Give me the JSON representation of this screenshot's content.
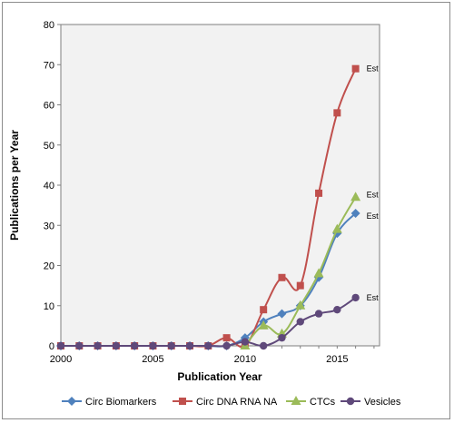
{
  "chart_data": {
    "type": "line",
    "xlabel": "Publication Year",
    "ylabel": "Publications per Year",
    "xlim": [
      2000,
      2017.3
    ],
    "ylim": [
      0,
      80
    ],
    "xticks": [
      2000,
      2005,
      2010,
      2015
    ],
    "yticks": [
      0,
      10,
      20,
      30,
      40,
      50,
      60,
      70,
      80
    ],
    "grid": false,
    "legend_position": "bottom",
    "plot_background": "#f2f2f2",
    "series": [
      {
        "name": "Circ Biomarkers",
        "color": "#4f81bd",
        "marker": "diamond",
        "x": [
          2000,
          2001,
          2002,
          2003,
          2004,
          2005,
          2006,
          2007,
          2008,
          2009,
          2010,
          2011,
          2012,
          2013,
          2014,
          2015,
          2016
        ],
        "y": [
          0,
          0,
          0,
          0,
          0,
          0,
          0,
          0,
          0,
          0,
          2,
          6,
          8,
          10,
          17,
          28,
          33
        ],
        "end_label": "Est"
      },
      {
        "name": "Circ DNA RNA NA",
        "color": "#c0504d",
        "marker": "square",
        "x": [
          2000,
          2001,
          2002,
          2003,
          2004,
          2005,
          2006,
          2007,
          2008,
          2009,
          2010,
          2011,
          2012,
          2013,
          2014,
          2015,
          2016
        ],
        "y": [
          0,
          0,
          0,
          0,
          0,
          0,
          0,
          0,
          0,
          2,
          0,
          9,
          17,
          15,
          38,
          58,
          69
        ],
        "end_label": "Est"
      },
      {
        "name": "CTCs",
        "color": "#9bbb59",
        "marker": "triangle",
        "x": [
          2010,
          2011,
          2012,
          2013,
          2014,
          2015,
          2016
        ],
        "y": [
          0,
          5,
          3,
          10,
          18,
          29,
          37
        ],
        "end_label": "Est"
      },
      {
        "name": "Vesicles",
        "color": "#5f497a",
        "marker": "circle",
        "x": [
          2000,
          2001,
          2002,
          2003,
          2004,
          2005,
          2006,
          2007,
          2008,
          2009,
          2010,
          2011,
          2012,
          2013,
          2014,
          2015,
          2016
        ],
        "y": [
          0,
          0,
          0,
          0,
          0,
          0,
          0,
          0,
          0,
          0,
          1,
          0,
          2,
          6,
          8,
          9,
          12
        ],
        "end_label": "Est"
      }
    ]
  }
}
